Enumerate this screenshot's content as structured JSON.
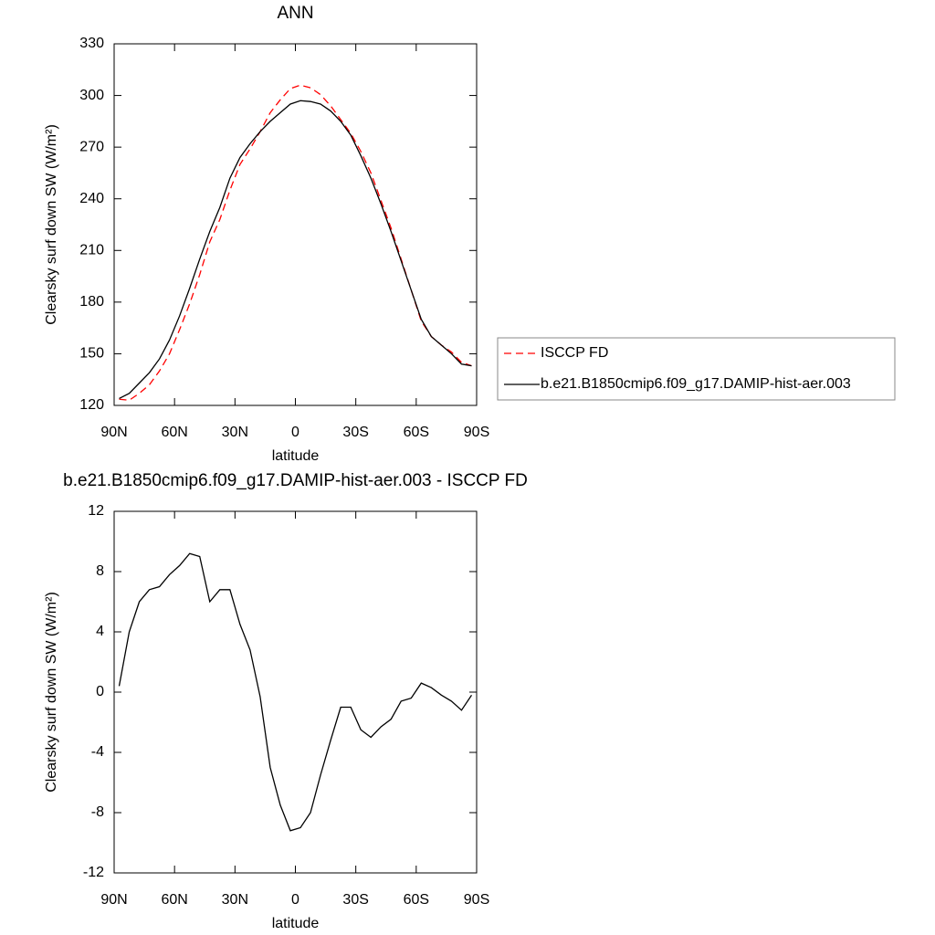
{
  "chart_data": [
    {
      "type": "line",
      "title": "ANN",
      "xlabel": "latitude",
      "ylabel": "Clearsky surf down SW (W/m²)",
      "x": [
        87.5,
        82.5,
        77.5,
        72.5,
        67.5,
        62.5,
        57.5,
        52.5,
        47.5,
        42.5,
        37.5,
        32.5,
        27.5,
        22.5,
        17.5,
        12.5,
        7.5,
        2.5,
        -2.5,
        -7.5,
        -12.5,
        -17.5,
        -22.5,
        -27.5,
        -32.5,
        -37.5,
        -42.5,
        -47.5,
        -52.5,
        -57.5,
        -62.5,
        -67.5,
        -72.5,
        -77.5,
        -82.5,
        -87.5
      ],
      "series": [
        {
          "name": "ISCCP FD",
          "color": "#ff0000",
          "line_style": "dashed",
          "values": [
            123.6,
            123,
            127,
            132,
            140,
            150,
            164,
            179,
            196,
            215,
            228,
            245,
            260,
            269,
            279,
            290,
            297.5,
            304,
            306,
            304.5,
            300.5,
            294,
            286,
            278,
            267.5,
            255,
            239,
            223,
            205,
            187,
            169,
            160,
            155,
            151,
            145,
            143
          ]
        },
        {
          "name": "b.e21.B1850cmip6.f09_g17.DAMIP-hist-aer.003",
          "color": "#000000",
          "line_style": "solid",
          "values": [
            124,
            127,
            133,
            139,
            147,
            158,
            172,
            188,
            205,
            221,
            235,
            252,
            264,
            272,
            279,
            285,
            290,
            295,
            297,
            296.5,
            295,
            291,
            285,
            277,
            265,
            252,
            237,
            221,
            204,
            187,
            170,
            160,
            155,
            150,
            144,
            143
          ]
        }
      ],
      "xlim": [
        90,
        -90
      ],
      "xticks": [
        {
          "value": 90,
          "label": "90N"
        },
        {
          "value": 60,
          "label": "60N"
        },
        {
          "value": 30,
          "label": "30N"
        },
        0,
        {
          "value": -30,
          "label": "30S"
        },
        {
          "value": -60,
          "label": "60S"
        },
        {
          "value": -90,
          "label": "90S"
        }
      ],
      "ylim": [
        120,
        330
      ],
      "yticks": [
        120,
        150,
        180,
        210,
        240,
        270,
        300,
        330
      ],
      "legend": "right"
    },
    {
      "type": "line",
      "title": "b.e21.B1850cmip6.f09_g17.DAMIP-hist-aer.003 - ISCCP FD",
      "xlabel": "latitude",
      "ylabel": "Clearsky surf down SW (W/m²)",
      "x": [
        87.5,
        82.5,
        77.5,
        72.5,
        67.5,
        62.5,
        57.5,
        52.5,
        47.5,
        42.5,
        37.5,
        32.5,
        27.5,
        22.5,
        17.5,
        12.5,
        7.5,
        2.5,
        -2.5,
        -7.5,
        -12.5,
        -17.5,
        -22.5,
        -27.5,
        -32.5,
        -37.5,
        -42.5,
        -47.5,
        -52.5,
        -57.5,
        -62.5,
        -67.5,
        -72.5,
        -77.5,
        -82.5,
        -87.5
      ],
      "series": [
        {
          "color": "#000000",
          "line_style": "solid",
          "values": [
            0.4,
            4.0,
            6.0,
            6.8,
            7.0,
            7.8,
            8.4,
            9.2,
            9.0,
            6.0,
            6.8,
            6.8,
            4.5,
            2.8,
            -0.3,
            -5.0,
            -7.5,
            -9.2,
            -9.0,
            -8.0,
            -5.5,
            -3.2,
            -1.0,
            -1.0,
            -2.5,
            -3.0,
            -2.3,
            -1.8,
            -0.6,
            -0.4,
            0.6,
            0.3,
            -0.2,
            -0.6,
            -1.2,
            -0.2
          ]
        }
      ],
      "xlim": [
        90,
        -90
      ],
      "xticks": [
        {
          "value": 90,
          "label": "90N"
        },
        {
          "value": 60,
          "label": "60N"
        },
        {
          "value": 30,
          "label": "30N"
        },
        0,
        {
          "value": -30,
          "label": "30S"
        },
        {
          "value": -60,
          "label": "60S"
        },
        {
          "value": -90,
          "label": "90S"
        }
      ],
      "ylim": [
        -12,
        12
      ],
      "yticks": [
        -12,
        -8,
        -4,
        0,
        4,
        8,
        12
      ]
    }
  ]
}
